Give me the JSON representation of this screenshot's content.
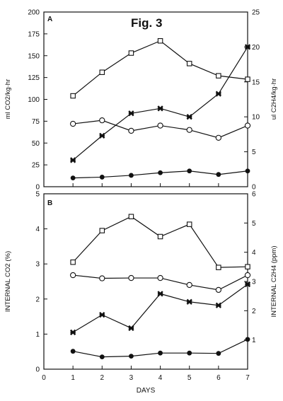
{
  "figure_label": "Fig. 3",
  "xlabel": "DAYS",
  "chart_data": [
    {
      "type": "line",
      "panel": "A",
      "xlim": [
        0,
        7
      ],
      "x_ticks": [
        0,
        1,
        2,
        3,
        4,
        5,
        6,
        7
      ],
      "ylabel_left": "ml CO2/kg·hr",
      "ylim_left": [
        0,
        200
      ],
      "y_ticks_left": [
        "0",
        "25",
        "50",
        "75",
        "100",
        "125",
        "150",
        "175",
        "200"
      ],
      "ylabel_right": "ul C2H4/kg·hr",
      "ylim_right": [
        0,
        25
      ],
      "y_ticks_right": [
        "0",
        "5",
        "10",
        "15",
        "20",
        "25"
      ],
      "grid": false,
      "series": [
        {
          "axis": "left",
          "marker": "open-square",
          "x": [
            1,
            2,
            3,
            4,
            5,
            6,
            7
          ],
          "values": [
            104,
            131,
            153,
            167,
            141,
            127,
            123
          ]
        },
        {
          "axis": "left",
          "marker": "open-circle",
          "x": [
            1,
            2,
            3,
            4,
            5,
            6,
            7
          ],
          "values": [
            72,
            76,
            64,
            70,
            65,
            56,
            70
          ]
        },
        {
          "axis": "right",
          "marker": "filled-star",
          "x": [
            1,
            2,
            3,
            4,
            5,
            6,
            7
          ],
          "values": [
            3.8,
            7.3,
            10.5,
            11.2,
            10.0,
            13.3,
            20.0
          ]
        },
        {
          "axis": "left",
          "marker": "filled-circle",
          "x": [
            1,
            2,
            3,
            4,
            5,
            6,
            7
          ],
          "values": [
            10,
            11,
            13,
            16,
            18,
            14,
            18
          ]
        }
      ]
    },
    {
      "type": "line",
      "panel": "B",
      "xlim": [
        0,
        7
      ],
      "x_ticks": [
        "0",
        "1",
        "2",
        "3",
        "4",
        "5",
        "6",
        "7"
      ],
      "ylabel_left": "INTERNAL CO2 (%)",
      "ylim_left": [
        0,
        5
      ],
      "y_ticks_left": [
        "0",
        "1",
        "2",
        "3",
        "4",
        "5"
      ],
      "ylabel_right": "INTERNAL C2H4 (ppm)",
      "ylim_right": [
        0,
        6
      ],
      "y_ticks_right": [
        "1",
        "2",
        "3",
        "4",
        "5",
        "6"
      ],
      "grid": false,
      "series": [
        {
          "axis": "left",
          "marker": "open-square",
          "x": [
            1,
            2,
            3,
            4,
            5,
            6,
            7
          ],
          "values": [
            3.05,
            3.95,
            4.35,
            3.78,
            4.13,
            2.9,
            2.92
          ]
        },
        {
          "axis": "left",
          "marker": "open-circle",
          "x": [
            1,
            2,
            3,
            4,
            5,
            6,
            7
          ],
          "values": [
            2.68,
            2.59,
            2.6,
            2.6,
            2.4,
            2.26,
            2.68
          ]
        },
        {
          "axis": "left",
          "marker": "filled-star",
          "x": [
            1,
            2,
            3,
            4,
            5,
            6,
            7
          ],
          "values": [
            1.05,
            1.55,
            1.17,
            2.15,
            1.92,
            1.82,
            2.42
          ]
        },
        {
          "axis": "left",
          "marker": "filled-circle",
          "x": [
            1,
            2,
            3,
            4,
            5,
            6,
            7
          ],
          "values": [
            0.51,
            0.35,
            0.37,
            0.46,
            0.46,
            0.45,
            0.85
          ]
        }
      ]
    }
  ]
}
